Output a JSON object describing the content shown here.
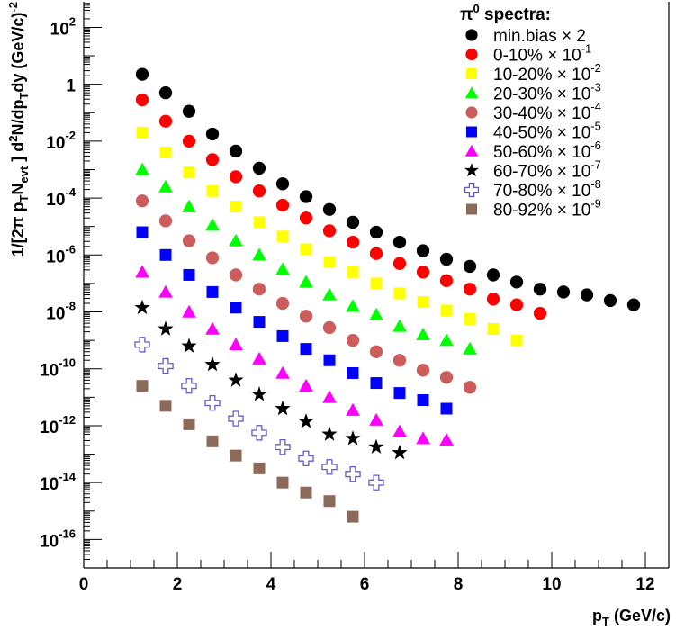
{
  "chart_data": {
    "type": "scatter",
    "x_scale": "linear",
    "y_scale": "log",
    "xlim": [
      0,
      12.5
    ],
    "ylim_log10": [
      -17,
      2.9
    ],
    "xlabel": "pT (GeV/c)",
    "ylabel": "1/[2π pT Nevt] d2N/dpTdy (GeV/c)-2",
    "x_ticks": [
      0,
      2,
      4,
      6,
      8,
      10,
      12
    ],
    "y_ticks_log10": [
      -16,
      -14,
      -12,
      -10,
      -8,
      -6,
      -4,
      -2,
      0,
      2
    ],
    "legend_title": "π0 spectra:",
    "legend_placement": "top-right",
    "series": [
      {
        "name": "min.bias ×2",
        "marker": "circle",
        "color": "#000000",
        "x": [
          1.25,
          1.75,
          2.25,
          2.75,
          3.25,
          3.75,
          4.25,
          4.75,
          5.25,
          5.75,
          6.25,
          6.75,
          7.25,
          7.75,
          8.25,
          8.75,
          9.25,
          9.75,
          10.25,
          10.75,
          11.25,
          11.75
        ],
        "y_log10": [
          0.35,
          -0.3,
          -0.95,
          -1.75,
          -2.35,
          -2.95,
          -3.5,
          -3.95,
          -4.4,
          -4.85,
          -5.2,
          -5.55,
          -5.85,
          -6.15,
          -6.4,
          -6.7,
          -6.95,
          -7.2,
          -7.3,
          -7.4,
          -7.6,
          -7.75
        ]
      },
      {
        "name": "0-10% ×10^-1",
        "marker": "circle",
        "color": "#ff0000",
        "x": [
          1.25,
          1.75,
          2.25,
          2.75,
          3.25,
          3.75,
          4.25,
          4.75,
          5.25,
          5.75,
          6.25,
          6.75,
          7.25,
          7.75,
          8.25,
          8.75,
          9.25,
          9.75
        ],
        "y_log10": [
          -0.55,
          -1.3,
          -2.0,
          -2.65,
          -3.25,
          -3.75,
          -4.25,
          -4.7,
          -5.15,
          -5.55,
          -5.95,
          -6.3,
          -6.6,
          -6.9,
          -7.2,
          -7.55,
          -7.75,
          -8.05
        ]
      },
      {
        "name": "10-20% ×10^-2",
        "marker": "square",
        "color": "#ffff00",
        "x": [
          1.25,
          1.75,
          2.25,
          2.75,
          3.25,
          3.75,
          4.25,
          4.75,
          5.25,
          5.75,
          6.25,
          6.75,
          7.25,
          7.75,
          8.25,
          8.75,
          9.25
        ],
        "y_log10": [
          -1.7,
          -2.4,
          -3.1,
          -3.75,
          -4.3,
          -4.85,
          -5.35,
          -5.8,
          -6.25,
          -6.6,
          -7.0,
          -7.35,
          -7.65,
          -7.95,
          -8.25,
          -8.6,
          -9.0
        ]
      },
      {
        "name": "20-30% ×10^-3",
        "marker": "triangle",
        "color": "#00ff00",
        "x": [
          1.25,
          1.75,
          2.25,
          2.75,
          3.25,
          3.75,
          4.25,
          4.75,
          5.25,
          5.75,
          6.25,
          6.75,
          7.25,
          7.75,
          8.25
        ],
        "y_log10": [
          -3.0,
          -3.6,
          -4.3,
          -4.95,
          -5.5,
          -6.0,
          -6.5,
          -6.95,
          -7.4,
          -7.8,
          -8.1,
          -8.5,
          -8.8,
          -9.0,
          -9.3
        ]
      },
      {
        "name": "30-40% ×10^-4",
        "marker": "circle",
        "color": "#cd5c5c",
        "x": [
          1.25,
          1.75,
          2.25,
          2.75,
          3.25,
          3.75,
          4.25,
          4.75,
          5.25,
          5.75,
          6.25,
          6.75,
          7.25,
          7.75,
          8.25
        ],
        "y_log10": [
          -4.1,
          -4.8,
          -5.5,
          -6.1,
          -6.7,
          -7.2,
          -7.7,
          -8.15,
          -8.55,
          -9.0,
          -9.4,
          -9.7,
          -10.05,
          -10.3,
          -10.65
        ]
      },
      {
        "name": "40-50% ×10^-5",
        "marker": "square",
        "color": "#0000ff",
        "x": [
          1.25,
          1.75,
          2.25,
          2.75,
          3.25,
          3.75,
          4.25,
          4.75,
          5.25,
          5.75,
          6.25,
          6.75,
          7.25,
          7.75
        ],
        "y_log10": [
          -5.2,
          -6.0,
          -6.7,
          -7.3,
          -7.85,
          -8.35,
          -8.85,
          -9.3,
          -9.7,
          -10.15,
          -10.5,
          -10.85,
          -11.1,
          -11.4
        ]
      },
      {
        "name": "50-60% ×10^-6",
        "marker": "triangle",
        "color": "#ff00ff",
        "x": [
          1.25,
          1.75,
          2.25,
          2.75,
          3.25,
          3.75,
          4.25,
          4.75,
          5.25,
          5.75,
          6.25,
          6.75,
          7.25,
          7.75
        ],
        "y_log10": [
          -6.6,
          -7.3,
          -8.0,
          -8.6,
          -9.15,
          -9.65,
          -10.15,
          -10.6,
          -11.0,
          -11.45,
          -11.8,
          -12.2,
          -12.45,
          -12.5
        ]
      },
      {
        "name": "60-70% ×10^-7",
        "marker": "star",
        "color": "#000000",
        "x": [
          1.25,
          1.75,
          2.25,
          2.75,
          3.25,
          3.75,
          4.25,
          4.75,
          5.25,
          5.75,
          6.25,
          6.75
        ],
        "y_log10": [
          -7.85,
          -8.6,
          -9.2,
          -9.85,
          -10.4,
          -10.9,
          -11.4,
          -11.85,
          -12.3,
          -12.45,
          -12.75,
          -12.95
        ]
      },
      {
        "name": "70-80% ×10^-8",
        "marker": "open-cross",
        "color": "#6a5acd",
        "x": [
          1.25,
          1.75,
          2.25,
          2.75,
          3.25,
          3.75,
          4.25,
          4.75,
          5.25,
          5.75,
          6.25
        ],
        "y_log10": [
          -9.15,
          -9.9,
          -10.6,
          -11.2,
          -11.75,
          -12.25,
          -12.75,
          -13.15,
          -13.45,
          -13.7,
          -14.0
        ]
      },
      {
        "name": "80-92% ×10^-9",
        "marker": "square",
        "color": "#8b6a5a",
        "x": [
          1.25,
          1.75,
          2.25,
          2.75,
          3.25,
          3.75,
          4.25,
          4.75,
          5.25,
          5.75
        ],
        "y_log10": [
          -10.6,
          -11.3,
          -11.95,
          -12.55,
          -13.05,
          -13.5,
          -14.0,
          -14.35,
          -14.65,
          -15.2
        ]
      }
    ]
  }
}
